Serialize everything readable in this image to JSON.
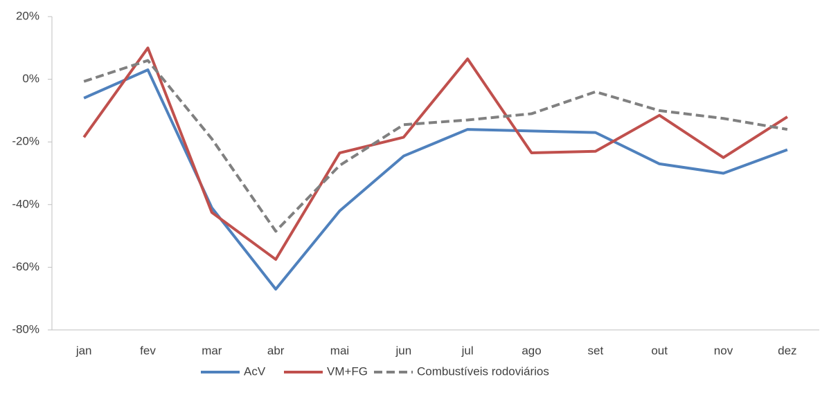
{
  "chart_data": {
    "type": "line",
    "categories": [
      "jan",
      "fev",
      "mar",
      "abr",
      "mai",
      "jun",
      "jul",
      "ago",
      "set",
      "out",
      "nov",
      "dez"
    ],
    "series": [
      {
        "name": "AcV",
        "color": "#4f81bd",
        "dashed": false,
        "values": [
          -6,
          3,
          -41,
          -67,
          -42,
          -24.5,
          -16,
          -16.5,
          -17,
          -27,
          -30,
          -22.5
        ]
      },
      {
        "name": "VM+FG",
        "color": "#c0504d",
        "dashed": false,
        "values": [
          -18.5,
          10,
          -42.5,
          -57.5,
          -23.5,
          -18.5,
          6.5,
          -23.5,
          -23,
          -11.5,
          -25,
          -12
        ]
      },
      {
        "name": "Combustíveis rodoviários",
        "color": "#808080",
        "dashed": true,
        "values": [
          -0.7,
          6,
          -19,
          -48.5,
          -27.5,
          -14.5,
          -13,
          -11,
          -4,
          -10,
          -12.5,
          -16
        ]
      }
    ],
    "ylim": [
      -80,
      20
    ],
    "yticks": [
      {
        "value": -80,
        "label": "-80%"
      },
      {
        "value": -60,
        "label": "-60%"
      },
      {
        "value": -40,
        "label": "-40%"
      },
      {
        "value": -20,
        "label": "-20%"
      },
      {
        "value": 0,
        "label": "0%"
      },
      {
        "value": 20,
        "label": "20%"
      }
    ],
    "grid": false,
    "legend": "bottom"
  }
}
